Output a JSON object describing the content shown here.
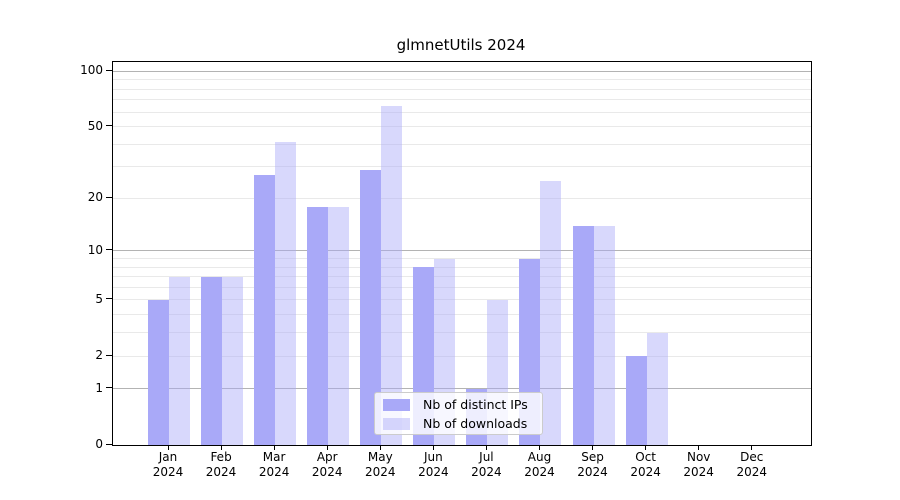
{
  "title": "glmnetUtils 2024",
  "chart_data": {
    "type": "bar",
    "title": "glmnetUtils 2024",
    "yscale": "log10(1+x)",
    "categories": [
      "Jan",
      "Feb",
      "Mar",
      "Apr",
      "May",
      "Jun",
      "Jul",
      "Aug",
      "Sep",
      "Oct",
      "Nov",
      "Dec"
    ],
    "x_sublabel": "2024",
    "series": [
      {
        "name": "Nb of distinct IPs",
        "color": "#a9a9f8",
        "values": [
          5,
          7,
          27,
          18,
          29,
          8,
          1,
          9,
          14,
          2,
          0,
          0
        ]
      },
      {
        "name": "Nb of downloads",
        "color": "rgba(169,169,248,0.45)",
        "color_hex_on_white": "#d9d9f9",
        "values": [
          7,
          7,
          41,
          18,
          65,
          9,
          5,
          25,
          14,
          3,
          0,
          0
        ]
      }
    ],
    "y_tick_labels": [
      0,
      1,
      2,
      5,
      10,
      20,
      50,
      100
    ],
    "ylim": [
      0,
      110
    ],
    "major_gridlines": [
      1,
      10,
      100
    ],
    "minor_gridlines": [
      2,
      3,
      4,
      5,
      6,
      7,
      8,
      9,
      20,
      30,
      40,
      50,
      60,
      70,
      80,
      90
    ],
    "grid": true,
    "legend": {
      "entries": [
        "Nb of distinct IPs",
        "Nb of downloads"
      ],
      "position": "lower-center"
    }
  }
}
